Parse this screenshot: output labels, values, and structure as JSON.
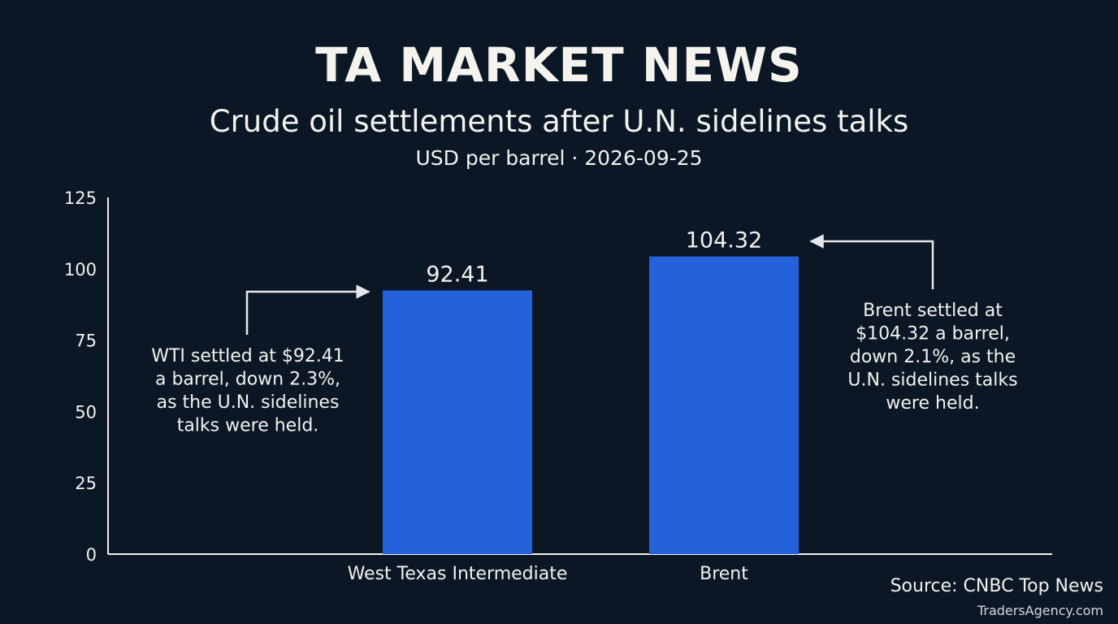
{
  "header": {
    "brand": "TA MARKET NEWS"
  },
  "footer": {
    "source": "Source: CNBC Top News",
    "watermark": "TradersAgency.com"
  },
  "colors": {
    "background": "#0c1726",
    "bar": "#2561db",
    "text": "#f2f2ee",
    "axis": "#f2f2ee"
  },
  "chart_data": {
    "type": "bar",
    "title": "Crude oil settlements after U.N. sidelines talks",
    "subtitle": "USD per barrel · 2026-09-25",
    "categories": [
      "West Texas Intermediate",
      "Brent"
    ],
    "values": [
      92.41,
      104.32
    ],
    "data_labels": [
      "92.41",
      "104.32"
    ],
    "ylim": [
      0,
      125
    ],
    "yticks": [
      0,
      25,
      50,
      75,
      100,
      125
    ],
    "xlabel": "",
    "ylabel": "",
    "grid": false,
    "annotations": [
      {
        "target": "West Texas Intermediate",
        "text": [
          "WTI settled at $92.41",
          "a barrel, down 2.3%,",
          "as the U.N. sidelines",
          "talks were held."
        ]
      },
      {
        "target": "Brent",
        "text": [
          "Brent settled at",
          "$104.32 a barrel,",
          "down 2.1%, as the",
          "U.N. sidelines talks",
          "were held."
        ]
      }
    ]
  }
}
